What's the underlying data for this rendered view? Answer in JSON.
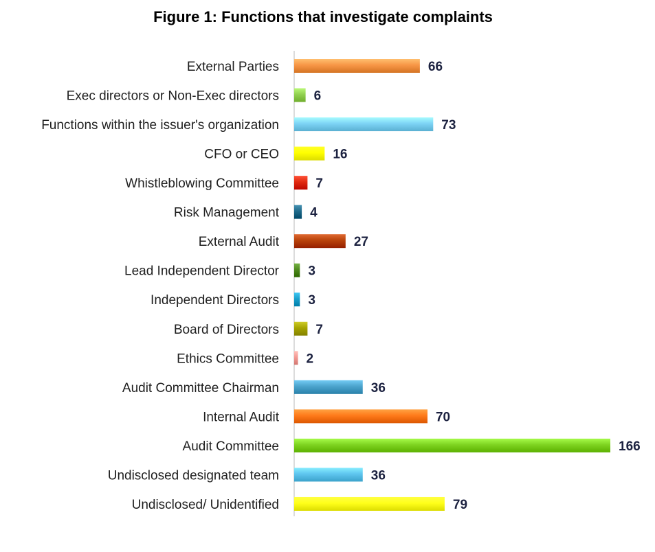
{
  "chart_data": {
    "type": "bar",
    "orientation": "horizontal",
    "title": "Figure 1: Functions that investigate complaints",
    "xlabel": "",
    "ylabel": "",
    "grid": false,
    "legend": "none",
    "xlim": [
      0,
      166
    ],
    "categories": [
      "External Parties",
      "Exec directors or Non-Exec directors",
      "Functions within the issuer's organization",
      "CFO or CEO",
      "Whistleblowing Committee",
      "Risk Management",
      "External Audit",
      "Lead Independent Director",
      "Independent Directors",
      "Board of Directors",
      "Ethics Committee",
      "Audit Committee Chairman",
      "Internal Audit",
      "Audit Committee",
      "Undisclosed designated team",
      "Undisclosed/ Unidentified"
    ],
    "values": [
      66,
      6,
      73,
      16,
      7,
      4,
      27,
      3,
      3,
      7,
      2,
      36,
      70,
      166,
      36,
      79
    ],
    "value_labels": [
      "66",
      "6",
      "73",
      "16",
      "7",
      "4",
      "27",
      "3",
      "3",
      "7",
      "2",
      "36",
      "70",
      "166",
      "36",
      "79"
    ],
    "colors": [
      "#f79646",
      "#92d050",
      "#7dd3f5",
      "#ffff00",
      "#e02a10",
      "#1f6a8a",
      "#b8420a",
      "#4f8a1e",
      "#1aa0cc",
      "#a6a400",
      "#f49a94",
      "#4ba3cc",
      "#ff7a1a",
      "#7ed321",
      "#5ec5ee",
      "#ffff1a"
    ]
  }
}
